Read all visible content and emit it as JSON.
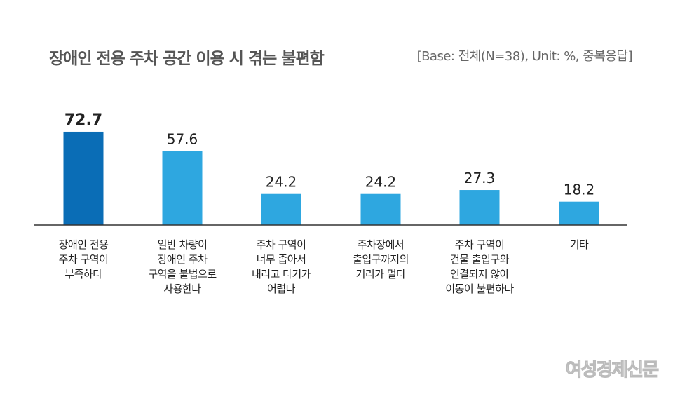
{
  "chart_data": {
    "type": "bar",
    "title": "장애인 전용 주차 공간 이용 시 겪는 불편함",
    "subtitle": "[Base: 전체(N=38), Unit: %, 중복응답]",
    "categories": [
      "장애인 전용\n주차 구역이\n부족하다",
      "일반 차량이\n장애인 주차\n구역을 불법으로\n사용한다",
      "주차 구역이\n너무 좁아서\n내리고 타기가\n어렵다",
      "주차장에서\n출입구까지의\n거리가 멀다",
      "주차 구역이\n건물 출입구와\n연결되지 않아\n이동이 불편하다",
      "기타"
    ],
    "values": [
      72.7,
      57.6,
      24.2,
      24.2,
      27.3,
      18.2
    ],
    "value_labels": [
      "72.7",
      "57.6",
      "24.2",
      "24.2",
      "27.3",
      "18.2"
    ],
    "highlight_index": 0,
    "colors": {
      "highlight": "#0a6db6",
      "bar": "#2ea7e0",
      "axis": "#333333"
    },
    "ylim": [
      0,
      100
    ],
    "grid": false,
    "legend": "none"
  },
  "watermark": "여성경제신문"
}
